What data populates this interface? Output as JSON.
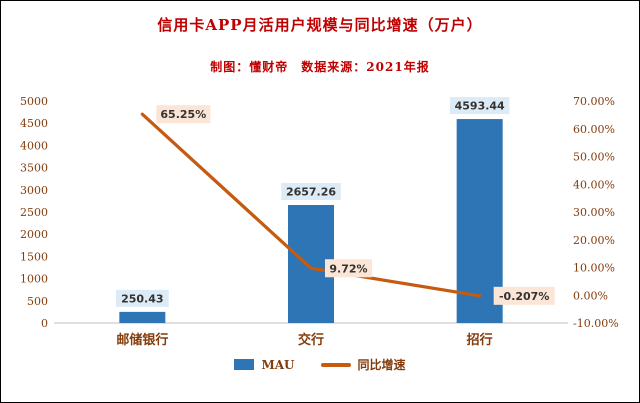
{
  "title": "信用卡APP月活用户规模与同比增速（万户）",
  "subtitle": "制图：懂财帝　数据来源：2021年报",
  "colors": {
    "title_text": "#C00000",
    "axis_text": "#843C0C",
    "bar_fill": "#2E75B6",
    "line_stroke": "#C55A11",
    "bar_label_bg": "#DDEBF7",
    "line_label_bg": "#FBE5D6",
    "axis_line": "#BFBFBF"
  },
  "chart_data": {
    "type": "bar+line combo",
    "categories": [
      "邮储银行",
      "交行",
      "招行"
    ],
    "series": [
      {
        "name": "MAU",
        "type": "bar",
        "axis": "left",
        "values": [
          250.43,
          2657.26,
          4593.44
        ],
        "labels": [
          "250.43",
          "2657.26",
          "4593.44"
        ],
        "color": "#2E75B6",
        "label_bg": "#DDEBF7"
      },
      {
        "name": "同比增速",
        "type": "line",
        "axis": "right",
        "values": [
          65.25,
          9.72,
          -0.207
        ],
        "labels": [
          "65.25%",
          "9.72%",
          "-0.207%"
        ],
        "color": "#C55A11",
        "label_bg": "#FBE5D6"
      }
    ],
    "left_axis": {
      "min": 0,
      "max": 5000,
      "step": 500,
      "ticks": [
        "0",
        "500",
        "1000",
        "1500",
        "2000",
        "2500",
        "3000",
        "3500",
        "4000",
        "4500",
        "5000"
      ]
    },
    "right_axis": {
      "min": -10,
      "max": 70,
      "step": 10,
      "ticks": [
        "-10.00%",
        "0.00%",
        "10.00%",
        "20.00%",
        "30.00%",
        "40.00%",
        "50.00%",
        "60.00%",
        "70.00%"
      ]
    },
    "grid": "off",
    "legend_position": "bottom",
    "legend": [
      {
        "label": "MAU",
        "marker": "rect",
        "color": "#2E75B6"
      },
      {
        "label": "同比增速",
        "marker": "line",
        "color": "#C55A11"
      }
    ]
  }
}
